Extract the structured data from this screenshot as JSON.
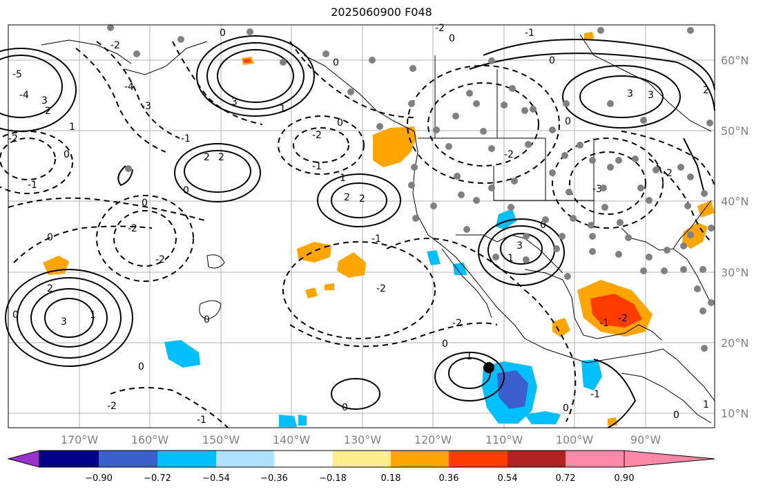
{
  "title": "2025060900 F048",
  "lat_labels": [
    "60°N",
    "50°N",
    "40°N",
    "30°N",
    "20°N",
    "10°N"
  ],
  "lon_labels": [
    "170°W",
    "160°W",
    "150°W",
    "140°W",
    "130°W",
    "120°W",
    "110°W",
    "100°W",
    "90°W"
  ],
  "colorbar": {
    "colors": [
      "#9932CC",
      "#00008B",
      "#3A5FCD",
      "#00BFFF",
      "#B0E2FF",
      "#FFFFFF",
      "#FFEC8B",
      "#FFA500",
      "#FF3C00",
      "#B22222",
      "#FF88A8"
    ],
    "tick_labels": [
      "−0.90",
      "−0.72",
      "−0.54",
      "−0.36",
      "−0.18",
      "0.18",
      "0.36",
      "0.54",
      "0.72",
      "0.90"
    ]
  },
  "contour_labels": {
    "pos_3": "3",
    "pos_2": "2",
    "pos_1": "1",
    "zero": "0",
    "neg_1": "-1",
    "neg_2": "-2",
    "neg_3": "-3",
    "neg_4": "-4",
    "neg_5": "-5"
  },
  "map_style": {
    "land_line_color": "#000000",
    "gridline_color": "#b0b0b0",
    "station_color": "#808080",
    "marker_color": "#000000"
  }
}
